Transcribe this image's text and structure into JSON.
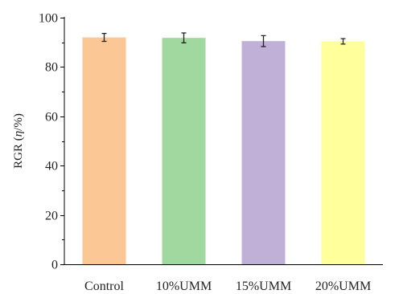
{
  "chart_data": {
    "type": "bar",
    "title": "",
    "xlabel": "",
    "ylabel": {
      "prefix": "RGR (",
      "symbol": "η",
      "suffix": "/%)"
    },
    "categories": [
      "Control",
      "10%UMM",
      "15%UMM",
      "20%UMM"
    ],
    "values": [
      92,
      91.8,
      90.5,
      90.4
    ],
    "errors": [
      1.6,
      2.0,
      2.2,
      1.1
    ],
    "colors": [
      "#FAC795",
      "#A0D8A0",
      "#C0B0D8",
      "#FFFF9C"
    ],
    "ylim": [
      0,
      100
    ],
    "yticks": [
      0,
      20,
      40,
      60,
      80,
      100
    ],
    "grid": false,
    "legend": "none"
  }
}
